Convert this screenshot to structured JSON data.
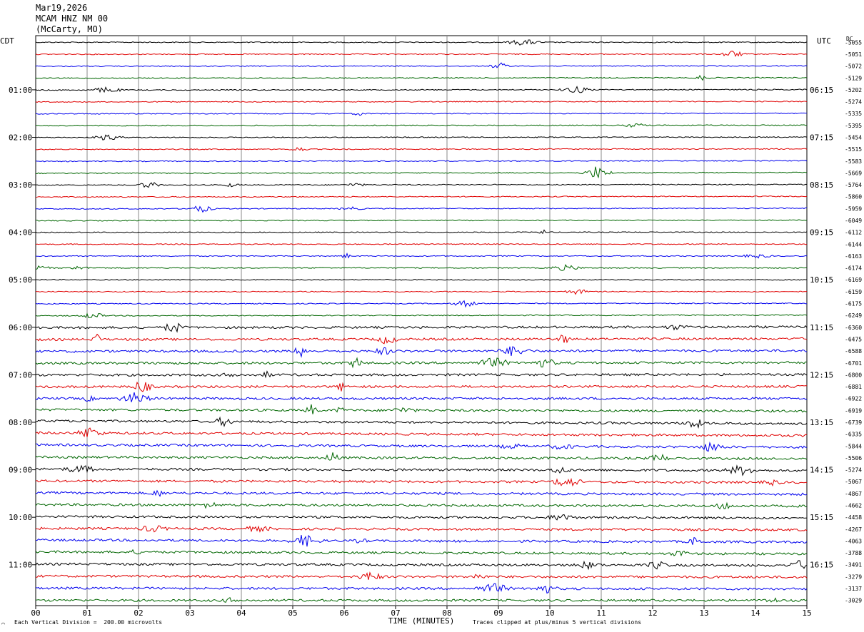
{
  "header": {
    "date": "Mar19,2026",
    "station": "MCAM HNZ NM 00",
    "location": "(McCarty, MO)"
  },
  "left_timezone": "CDT",
  "right_timezone": "UTC",
  "dc_header": "DC",
  "footer": {
    "scale_note": "Each Vertical Division =  200.00 microvolts",
    "clip_note": "Traces clipped at plus/minus 5 vertical divisions",
    "corner_mark": "⌒"
  },
  "colors": {
    "black": "#000000",
    "red": "#e00000",
    "blue": "#0000ee",
    "green": "#006600",
    "grid": "#888888"
  },
  "chart_data": {
    "type": "line",
    "xlabel": "TIME (MINUTES)",
    "xlim": [
      0,
      15
    ],
    "x_ticks": [
      "00",
      "01",
      "02",
      "03",
      "04",
      "05",
      "06",
      "07",
      "08",
      "09",
      "10",
      "11",
      "12",
      "13",
      "14",
      "15"
    ],
    "left_hour_labels": [
      "01:00",
      "02:00",
      "03:00",
      "04:00",
      "05:00",
      "06:00",
      "07:00",
      "08:00",
      "09:00",
      "10:00",
      "11:00"
    ],
    "right_hour_labels": [
      "06:15",
      "07:15",
      "08:15",
      "09:15",
      "10:15",
      "11:15",
      "12:15",
      "13:15",
      "14:15",
      "15:15",
      "16:15"
    ],
    "trace_color_cycle": [
      "black",
      "red",
      "blue",
      "green"
    ],
    "dc_offsets": [
      -5055,
      -5051,
      -5072,
      -5129,
      -5202,
      -5274,
      -5335,
      -5395,
      -5454,
      -5515,
      -5583,
      -5669,
      -5764,
      -5860,
      -5959,
      -6049,
      -6112,
      -6144,
      -6163,
      -6174,
      -6169,
      -6159,
      -6175,
      -6249,
      -6360,
      -6475,
      -6588,
      -6701,
      -6800,
      -6881,
      -6922,
      -6919,
      -6739,
      -6335,
      -5844,
      -5506,
      -5274,
      -5067,
      -4867,
      -4662,
      -4458,
      -4267,
      -4063,
      -3788,
      -3491,
      -3279,
      -3137,
      -3029
    ]
  }
}
